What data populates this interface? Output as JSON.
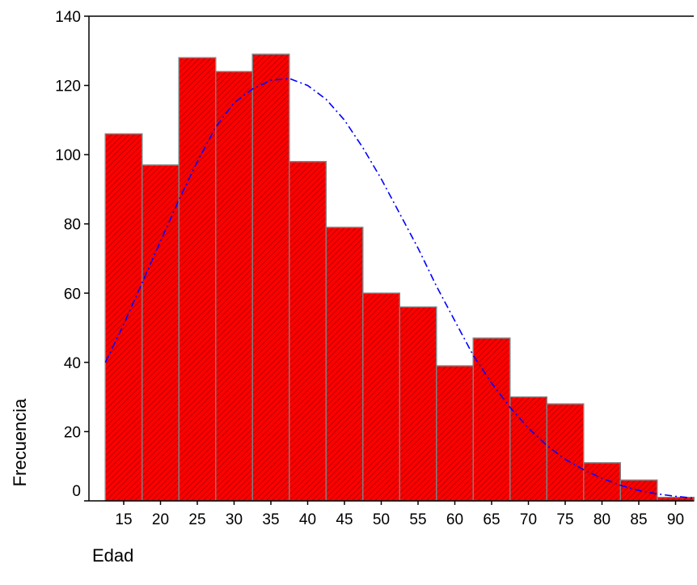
{
  "chart_data": {
    "type": "bar",
    "subtype": "histogram",
    "xlabel": "Edad",
    "ylabel": "Frecuencia",
    "bin_centers": [
      15,
      20,
      25,
      30,
      35,
      40,
      45,
      50,
      55,
      60,
      65,
      70,
      75,
      80,
      85,
      90
    ],
    "values": [
      106,
      97,
      128,
      124,
      129,
      98,
      79,
      60,
      56,
      39,
      47,
      30,
      28,
      11,
      6,
      1
    ],
    "x_ticks": [
      "15",
      "20",
      "25",
      "30",
      "35",
      "40",
      "45",
      "50",
      "55",
      "60",
      "65",
      "70",
      "75",
      "80",
      "85",
      "90"
    ],
    "y_ticks": [
      "0",
      "20",
      "40",
      "60",
      "80",
      "100",
      "120",
      "140"
    ],
    "ylim": [
      0,
      140
    ],
    "bar_color": "#ff0000",
    "bar_edge_color": "#808080",
    "bar_hatch_color": "#8b0000",
    "normal_curve": {
      "style": "dash-dot",
      "color": "#0000ff",
      "points": [
        [
          12.5,
          40
        ],
        [
          15,
          51
        ],
        [
          17.5,
          63
        ],
        [
          20,
          75
        ],
        [
          22.5,
          87
        ],
        [
          25,
          98
        ],
        [
          27.5,
          108
        ],
        [
          30,
          115
        ],
        [
          32.5,
          119
        ],
        [
          35,
          121.5
        ],
        [
          37.5,
          122
        ],
        [
          40,
          120
        ],
        [
          42.5,
          116
        ],
        [
          45,
          110
        ],
        [
          47.5,
          102
        ],
        [
          50,
          93
        ],
        [
          52.5,
          83
        ],
        [
          55,
          73
        ],
        [
          57.5,
          62
        ],
        [
          60,
          52
        ],
        [
          62.5,
          42
        ],
        [
          65,
          34
        ],
        [
          67.5,
          27
        ],
        [
          70,
          21
        ],
        [
          72.5,
          16
        ],
        [
          75,
          12
        ],
        [
          77.5,
          9
        ],
        [
          80,
          6.5
        ],
        [
          82.5,
          4.5
        ],
        [
          85,
          3
        ],
        [
          87.5,
          2
        ],
        [
          90,
          1.3
        ],
        [
          92.5,
          0.8
        ]
      ]
    }
  }
}
